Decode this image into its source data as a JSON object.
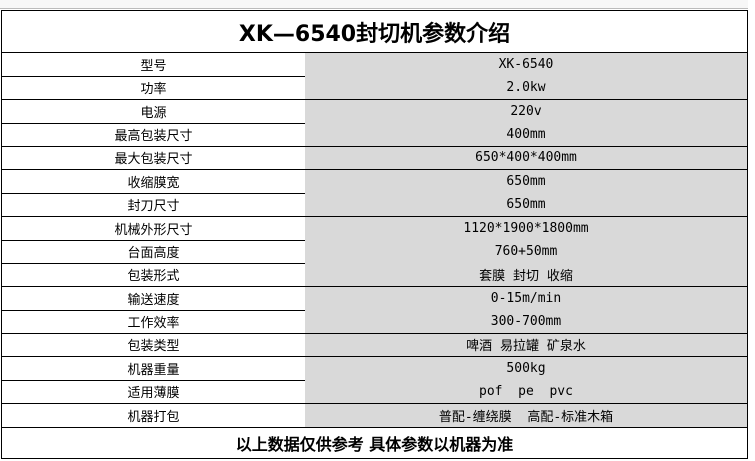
{
  "header": {
    "title": "XK—6540封切机参数介绍"
  },
  "table": {
    "rows": [
      [
        "型号",
        "XK-6540"
      ],
      [
        "功率",
        "2.0kw"
      ],
      [
        "电源",
        "220v"
      ],
      [
        "最高包装尺寸",
        "400mm"
      ],
      [
        "最大包装尺寸",
        "650*400*400mm"
      ],
      [
        "收缩膜宽",
        "650mm"
      ],
      [
        "封刀尺寸",
        "650mm"
      ],
      [
        "机械外形尺寸",
        "1120*1900*1800mm"
      ],
      [
        "台面高度",
        "760+50mm"
      ],
      [
        "包装形式",
        "套膜 封切 收缩"
      ],
      [
        "输送速度",
        "0-15m/min"
      ],
      [
        "工作效率",
        "300-700mm"
      ],
      [
        "包装类型",
        "啤酒 易拉罐 矿泉水"
      ],
      [
        "机器重量",
        "500kg"
      ],
      [
        "适用薄膜",
        "pof  pe  pvc"
      ],
      [
        "机器打包",
        "普配-缠绕膜  高配-标准木箱"
      ]
    ]
  },
  "footer": "以上数据仅供参考 具体参数以机器为准"
}
